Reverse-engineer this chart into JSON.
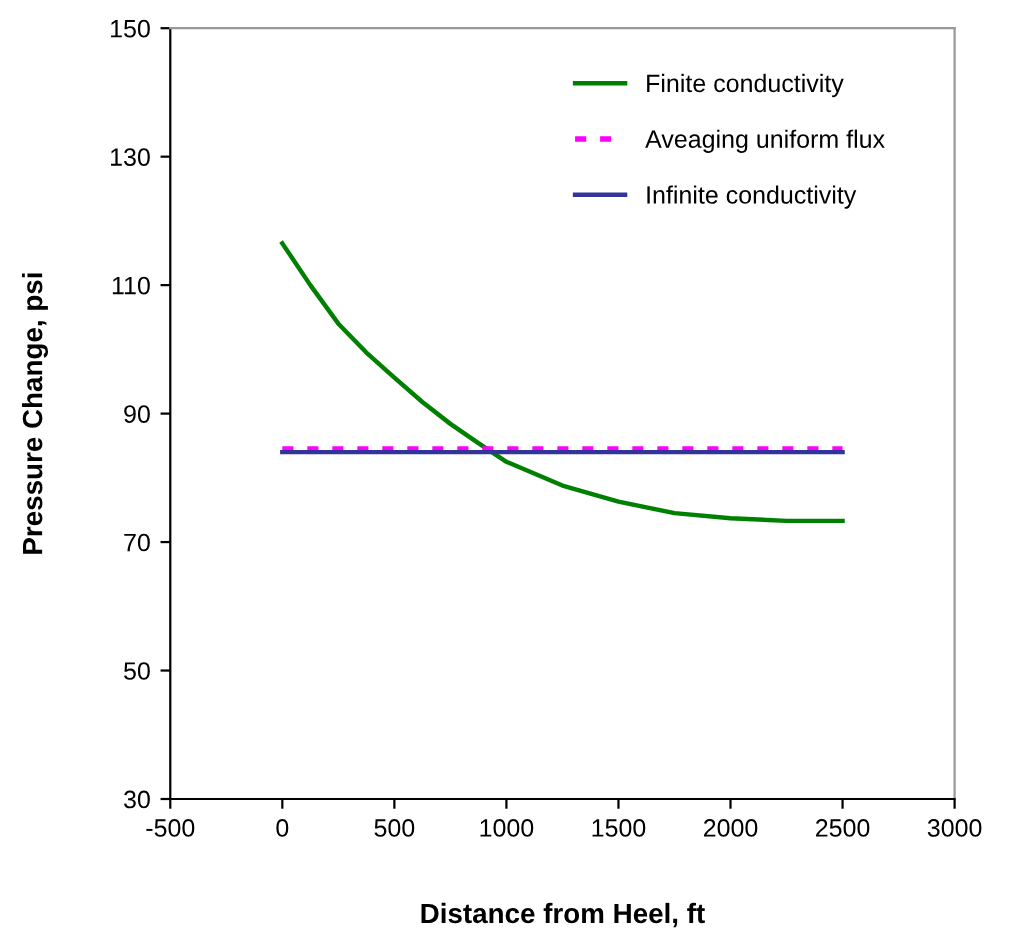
{
  "chart_data": {
    "type": "line",
    "xlabel": "Distance from Heel, ft",
    "ylabel": "Pressure Change, psi",
    "xlim": [
      -500,
      3000
    ],
    "xticks": [
      -500,
      0,
      500,
      1000,
      1500,
      2000,
      2500,
      3000
    ],
    "ylim": [
      30,
      150
    ],
    "yticks": [
      30,
      50,
      70,
      90,
      110,
      130,
      150
    ],
    "grid": false,
    "legend": "top right",
    "marker": "none",
    "series": [
      {
        "name": "Finite conductivity",
        "color": "#008000",
        "line_style": "solid",
        "x": [
          0,
          125,
          250,
          375,
          500,
          625,
          750,
          875,
          1000,
          1250,
          1500,
          1750,
          2000,
          2250,
          2500
        ],
        "values": [
          116.5,
          110,
          104.0,
          99.5,
          95.6,
          91.8,
          88.4,
          85.4,
          82.5,
          78.8,
          76.3,
          74.5,
          73.7,
          73.3,
          73.3
        ]
      },
      {
        "name": "Aveaging uniform flux",
        "color": "#ff00ff",
        "line_style": "dotted",
        "x": [
          0,
          2500
        ],
        "values": [
          84.5,
          84.5
        ]
      },
      {
        "name": "Infinite conductivity",
        "color": "#333399",
        "line_style": "solid",
        "x": [
          0,
          2500
        ],
        "values": [
          84.0,
          84.0
        ]
      }
    ]
  }
}
